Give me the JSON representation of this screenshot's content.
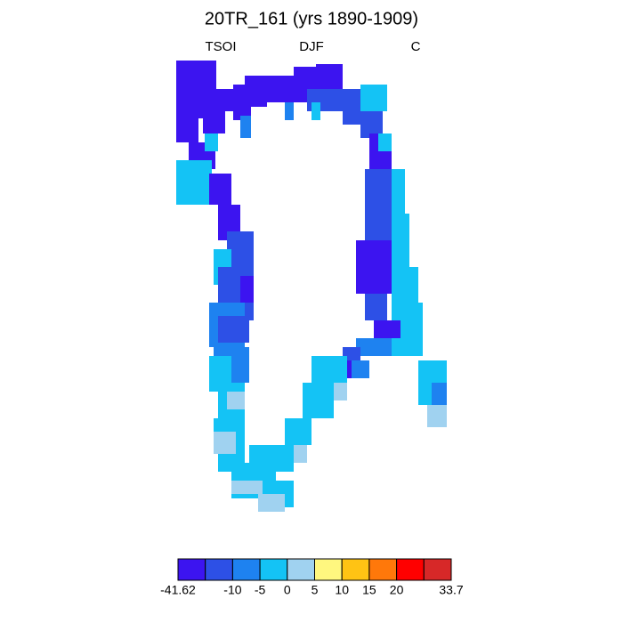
{
  "title": "20TR_161 (yrs 1890-1909)",
  "left_label": "TSOI",
  "center_label": "DJF",
  "right_label": "C",
  "colorbar": {
    "colors": [
      "#3c14f0",
      "#2d50e6",
      "#1e82f0",
      "#14c3f5",
      "#a0d2f0",
      "#fff77f",
      "#ffc314",
      "#ff780a",
      "#ff0000",
      "#d72828"
    ],
    "labels": [
      -41.62,
      -10,
      -5,
      0,
      5,
      10,
      15,
      20,
      33.7
    ]
  }
}
